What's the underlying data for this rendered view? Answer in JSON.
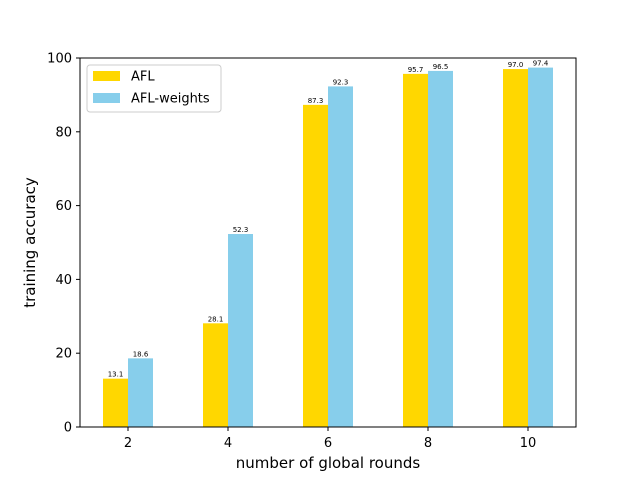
{
  "chart_data": {
    "type": "bar",
    "categories": [
      "2",
      "4",
      "6",
      "8",
      "10"
    ],
    "series": [
      {
        "name": "AFL",
        "values": [
          13.1,
          28.1,
          87.3,
          95.7,
          97.0
        ],
        "color": "#FFD700"
      },
      {
        "name": "AFL-weights",
        "values": [
          18.6,
          52.3,
          92.3,
          96.5,
          97.4
        ],
        "color": "#87CEEB"
      }
    ],
    "data_labels": {
      "AFL": [
        "13.1",
        "28.1",
        "87.3",
        "95.7",
        "97.0"
      ],
      "AFL-weights": [
        "18.6",
        "52.3",
        "92.3",
        "96.5",
        "97.4"
      ]
    },
    "title": "",
    "xlabel": "number of global rounds",
    "ylabel": "training accuracy",
    "ylim": [
      0,
      100
    ],
    "yticks": [
      "0",
      "20",
      "40",
      "60",
      "80",
      "100"
    ],
    "grid": false,
    "legend_position": "top-left"
  }
}
